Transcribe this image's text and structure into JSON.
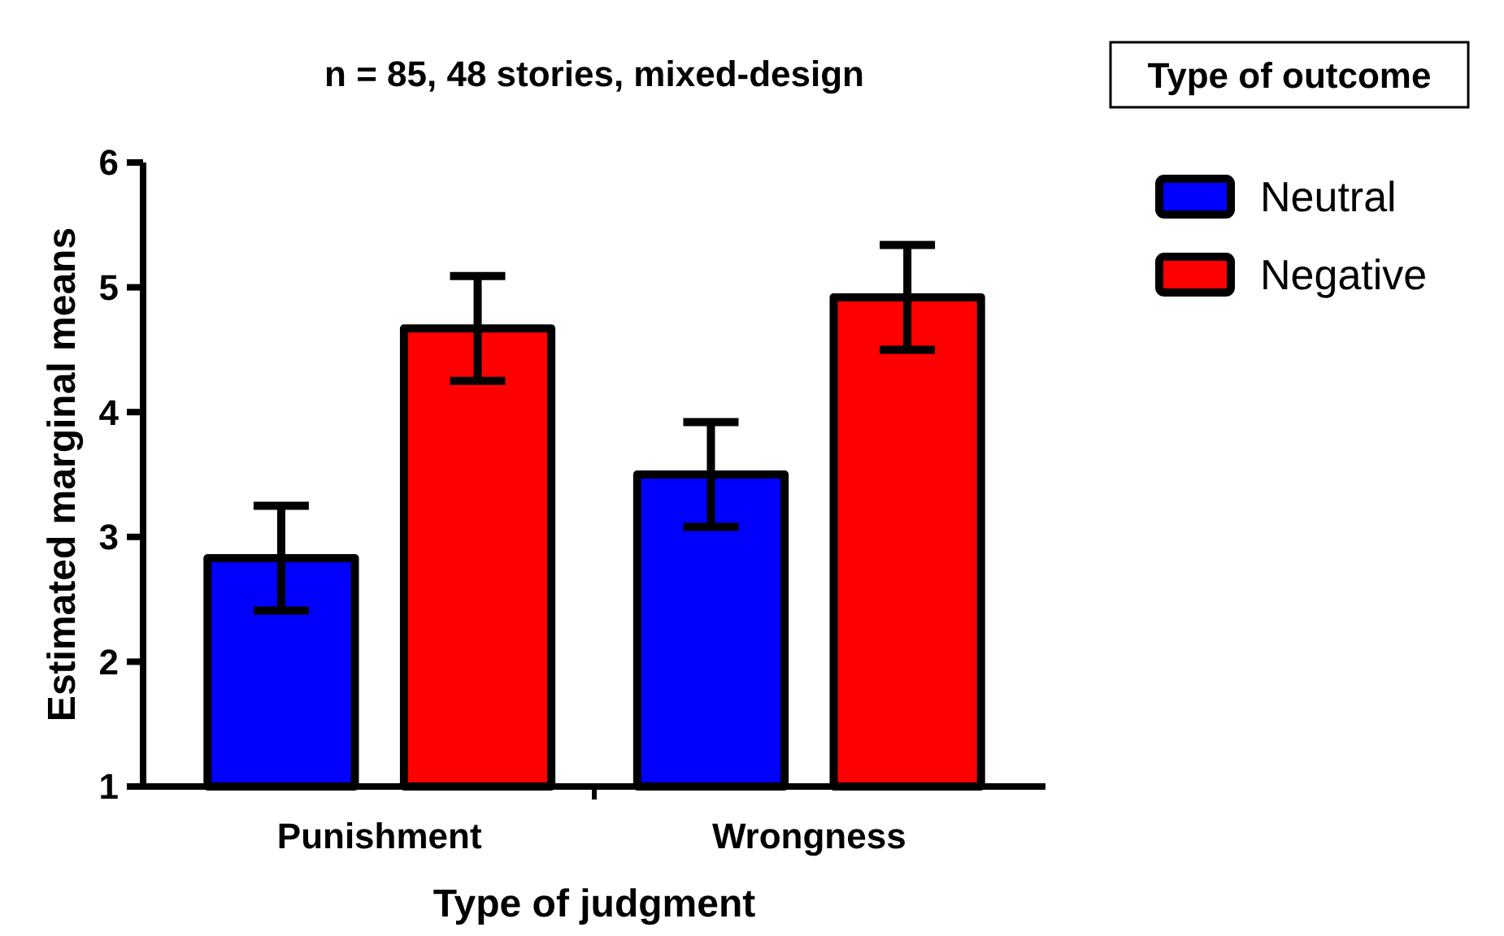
{
  "chart_data": {
    "type": "bar",
    "title": "n = 85, 48 stories, mixed-design",
    "xlabel": "Type of judgment",
    "ylabel": "Estimated marginal means",
    "legend_title": "Type of outcome",
    "categories": [
      "Punishment",
      "Wrongness"
    ],
    "series": [
      {
        "name": "Neutral",
        "color": "#0000ff",
        "values": [
          2.83,
          3.5
        ],
        "errors": [
          0.42,
          0.42
        ]
      },
      {
        "name": "Negative",
        "color": "#ff0000",
        "values": [
          4.67,
          4.92
        ],
        "errors": [
          0.42,
          0.42
        ]
      }
    ],
    "ylim": [
      1,
      6
    ],
    "yticks": [
      1,
      2,
      3,
      4,
      5,
      6
    ],
    "grid": false,
    "legend": "right"
  }
}
